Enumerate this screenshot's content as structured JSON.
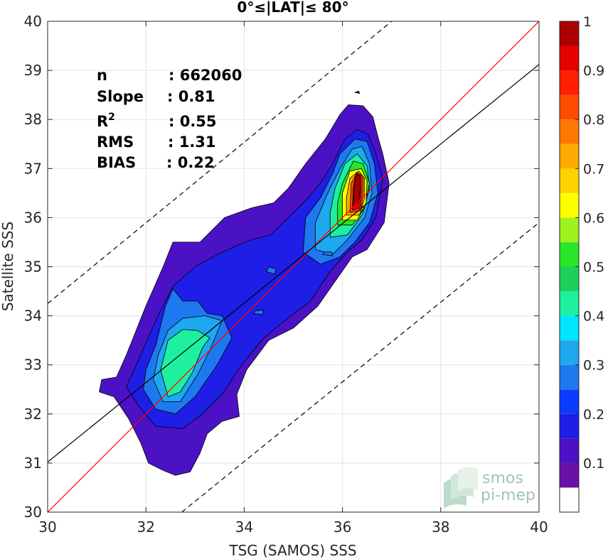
{
  "chart_data": {
    "type": "heatmap",
    "title": "0°≤|LAT|≤ 80°",
    "xlabel": "TSG (SAMOS) SSS",
    "ylabel": "Satellite SSS",
    "xlim": [
      30,
      40
    ],
    "ylim": [
      30,
      40
    ],
    "xticks": [
      "30",
      "32",
      "34",
      "36",
      "38",
      "40"
    ],
    "yticks": [
      "30",
      "31",
      "32",
      "33",
      "34",
      "35",
      "36",
      "37",
      "38",
      "39",
      "40"
    ],
    "grid": true,
    "stats": [
      {
        "label": "n",
        "value": ": 662060"
      },
      {
        "label": "Slope",
        "value": ": 0.81"
      },
      {
        "label": "R",
        "sup": "2",
        "value": ": 0.55"
      },
      {
        "label": "RMS",
        "value": ": 1.31"
      },
      {
        "label": "BIAS",
        "value": ": 0.22"
      }
    ],
    "lines": [
      {
        "name": "identity",
        "color": "#ff0000",
        "style": "solid",
        "points": [
          [
            30,
            30
          ],
          [
            40,
            40
          ]
        ]
      },
      {
        "name": "fit",
        "color": "#000000",
        "style": "solid",
        "points": [
          [
            30,
            31.02
          ],
          [
            40,
            39.12
          ]
        ]
      },
      {
        "name": "upper",
        "color": "#000000",
        "style": "dashed",
        "points": [
          [
            30,
            34.25
          ],
          [
            37.0,
            40
          ]
        ]
      },
      {
        "name": "lower",
        "color": "#000000",
        "style": "dashed",
        "points": [
          [
            32.73,
            30
          ],
          [
            40,
            35.9
          ]
        ]
      }
    ],
    "colorbar": {
      "ticks": [
        "0.1",
        "0.2",
        "0.3",
        "0.4",
        "0.5",
        "0.6",
        "0.7",
        "0.8",
        "0.9",
        "1"
      ],
      "tick_values": [
        0.1,
        0.2,
        0.3,
        0.4,
        0.5,
        0.6,
        0.7,
        0.8,
        0.9,
        1.0
      ],
      "levels": [
        {
          "from": 0.0,
          "to": 0.05,
          "color": "#ffffff"
        },
        {
          "from": 0.05,
          "to": 0.1,
          "color": "#6a0fa8"
        },
        {
          "from": 0.1,
          "to": 0.15,
          "color": "#4a12c4"
        },
        {
          "from": 0.15,
          "to": 0.2,
          "color": "#1e1ee6"
        },
        {
          "from": 0.2,
          "to": 0.25,
          "color": "#0a3cff"
        },
        {
          "from": 0.25,
          "to": 0.3,
          "color": "#1e78f0"
        },
        {
          "from": 0.3,
          "to": 0.35,
          "color": "#1ea8f0"
        },
        {
          "from": 0.35,
          "to": 0.4,
          "color": "#00e6ff"
        },
        {
          "from": 0.4,
          "to": 0.45,
          "color": "#1ef0a0"
        },
        {
          "from": 0.45,
          "to": 0.5,
          "color": "#1ed05a"
        },
        {
          "from": 0.5,
          "to": 0.55,
          "color": "#28e628"
        },
        {
          "from": 0.55,
          "to": 0.6,
          "color": "#a0f01e"
        },
        {
          "from": 0.6,
          "to": 0.65,
          "color": "#ffff00"
        },
        {
          "from": 0.65,
          "to": 0.7,
          "color": "#ffd200"
        },
        {
          "from": 0.7,
          "to": 0.75,
          "color": "#ffaa00"
        },
        {
          "from": 0.75,
          "to": 0.8,
          "color": "#ff7800"
        },
        {
          "from": 0.8,
          "to": 0.85,
          "color": "#ff4b00"
        },
        {
          "from": 0.85,
          "to": 0.9,
          "color": "#ff1e00"
        },
        {
          "from": 0.9,
          "to": 0.95,
          "color": "#e60000"
        },
        {
          "from": 0.95,
          "to": 1.0,
          "color": "#aa0000"
        }
      ]
    },
    "contours": [
      {
        "level": 0.1,
        "color": "#4a12c4",
        "points": [
          [
            31.05,
            32.45
          ],
          [
            31.35,
            32.35
          ],
          [
            31.65,
            31.9
          ],
          [
            31.9,
            31.4
          ],
          [
            32.05,
            31.0
          ],
          [
            32.35,
            30.85
          ],
          [
            32.6,
            30.75
          ],
          [
            32.9,
            30.82
          ],
          [
            33.1,
            31.2
          ],
          [
            33.25,
            31.6
          ],
          [
            33.55,
            31.85
          ],
          [
            33.9,
            31.95
          ],
          [
            33.85,
            32.4
          ],
          [
            34.05,
            32.9
          ],
          [
            34.5,
            33.5
          ],
          [
            35.0,
            33.75
          ],
          [
            35.5,
            34.2
          ],
          [
            35.85,
            34.7
          ],
          [
            36.2,
            35.2
          ],
          [
            36.5,
            35.35
          ],
          [
            36.85,
            35.9
          ],
          [
            36.95,
            36.7
          ],
          [
            36.82,
            37.3
          ],
          [
            36.72,
            37.65
          ],
          [
            36.62,
            38.05
          ],
          [
            36.42,
            38.28
          ],
          [
            36.12,
            38.3
          ],
          [
            35.95,
            38.1
          ],
          [
            35.65,
            37.6
          ],
          [
            35.25,
            37.1
          ],
          [
            34.9,
            36.6
          ],
          [
            34.6,
            36.3
          ],
          [
            34.15,
            36.2
          ],
          [
            33.6,
            36.0
          ],
          [
            33.1,
            35.5
          ],
          [
            32.55,
            35.5
          ],
          [
            32.35,
            35.0
          ],
          [
            32.0,
            34.2
          ],
          [
            31.6,
            33.2
          ],
          [
            31.4,
            32.75
          ],
          [
            31.1,
            32.7
          ],
          [
            31.05,
            32.45
          ]
        ]
      },
      {
        "level": 0.15,
        "color": "#1e1ee6",
        "points": [
          [
            31.6,
            32.55
          ],
          [
            31.9,
            32.1
          ],
          [
            32.2,
            31.75
          ],
          [
            32.75,
            31.7
          ],
          [
            33.15,
            32.0
          ],
          [
            33.55,
            32.4
          ],
          [
            33.95,
            33.0
          ],
          [
            34.4,
            33.55
          ],
          [
            34.95,
            34.0
          ],
          [
            35.35,
            34.3
          ],
          [
            35.75,
            34.9
          ],
          [
            36.1,
            35.3
          ],
          [
            36.4,
            35.55
          ],
          [
            36.68,
            36.0
          ],
          [
            36.82,
            36.8
          ],
          [
            36.68,
            37.3
          ],
          [
            36.52,
            37.7
          ],
          [
            36.3,
            37.8
          ],
          [
            36.05,
            37.6
          ],
          [
            35.8,
            37.1
          ],
          [
            35.55,
            36.7
          ],
          [
            35.25,
            36.35
          ],
          [
            34.9,
            36.0
          ],
          [
            34.55,
            35.65
          ],
          [
            34.15,
            35.55
          ],
          [
            33.55,
            35.3
          ],
          [
            33.0,
            35.0
          ],
          [
            32.55,
            34.6
          ],
          [
            32.2,
            33.9
          ],
          [
            31.85,
            33.1
          ],
          [
            31.6,
            32.55
          ]
        ]
      },
      {
        "level": 0.25,
        "color": "#1e78f0",
        "points": [
          [
            31.95,
            32.5
          ],
          [
            32.2,
            32.1
          ],
          [
            32.6,
            32.0
          ],
          [
            33.0,
            32.35
          ],
          [
            33.45,
            33.0
          ],
          [
            33.75,
            33.55
          ],
          [
            33.55,
            34.0
          ],
          [
            33.25,
            34.05
          ],
          [
            33.05,
            34.3
          ],
          [
            32.75,
            34.3
          ],
          [
            32.55,
            34.55
          ],
          [
            32.4,
            34.2
          ],
          [
            32.2,
            33.4
          ],
          [
            32.0,
            32.9
          ],
          [
            31.95,
            32.5
          ]
        ]
      },
      {
        "level": 0.3,
        "color": "#1ea8f0",
        "points": [
          [
            32.15,
            32.7
          ],
          [
            32.35,
            32.25
          ],
          [
            32.7,
            32.25
          ],
          [
            33.05,
            32.8
          ],
          [
            33.3,
            33.3
          ],
          [
            33.55,
            33.9
          ],
          [
            33.2,
            34.0
          ],
          [
            32.75,
            33.95
          ],
          [
            32.45,
            33.7
          ],
          [
            32.25,
            33.2
          ],
          [
            32.15,
            32.7
          ]
        ]
      },
      {
        "level": 0.4,
        "color": "#1ef0a0",
        "points": [
          [
            32.3,
            32.9
          ],
          [
            32.45,
            32.35
          ],
          [
            32.7,
            32.45
          ],
          [
            32.95,
            32.85
          ],
          [
            33.15,
            33.35
          ],
          [
            33.3,
            33.55
          ],
          [
            33.05,
            33.7
          ],
          [
            32.75,
            33.72
          ],
          [
            32.45,
            33.5
          ],
          [
            32.3,
            32.9
          ]
        ]
      },
      {
        "level": 0.25,
        "color": "#1e78f0",
        "points": [
          [
            35.2,
            35.3
          ],
          [
            35.55,
            35.05
          ],
          [
            35.95,
            35.2
          ],
          [
            36.25,
            35.5
          ],
          [
            36.55,
            35.9
          ],
          [
            36.72,
            36.5
          ],
          [
            36.65,
            37.1
          ],
          [
            36.5,
            37.55
          ],
          [
            36.25,
            37.6
          ],
          [
            35.95,
            37.3
          ],
          [
            35.8,
            36.9
          ],
          [
            35.55,
            36.4
          ],
          [
            35.25,
            36.0
          ],
          [
            35.2,
            35.3
          ]
        ]
      },
      {
        "level": 0.3,
        "color": "#1ea8f0",
        "points": [
          [
            35.45,
            35.35
          ],
          [
            35.8,
            35.25
          ],
          [
            36.1,
            35.55
          ],
          [
            36.45,
            36.0
          ],
          [
            36.6,
            36.5
          ],
          [
            36.55,
            37.1
          ],
          [
            36.4,
            37.45
          ],
          [
            36.2,
            37.4
          ],
          [
            35.95,
            37.0
          ],
          [
            35.7,
            36.5
          ],
          [
            35.45,
            35.9
          ],
          [
            35.45,
            35.35
          ]
        ]
      },
      {
        "level": 0.4,
        "color": "#1ef0a0",
        "points": [
          [
            35.75,
            35.6
          ],
          [
            36.1,
            35.65
          ],
          [
            36.4,
            36.05
          ],
          [
            36.55,
            36.6
          ],
          [
            36.5,
            37.05
          ],
          [
            36.3,
            37.3
          ],
          [
            36.05,
            37.1
          ],
          [
            35.85,
            36.6
          ],
          [
            35.75,
            36.1
          ],
          [
            35.75,
            35.6
          ]
        ]
      },
      {
        "level": 0.5,
        "color": "#28e628",
        "points": [
          [
            35.9,
            35.85
          ],
          [
            36.2,
            35.85
          ],
          [
            36.45,
            36.2
          ],
          [
            36.55,
            36.7
          ],
          [
            36.42,
            37.1
          ],
          [
            36.22,
            37.15
          ],
          [
            36.0,
            36.7
          ],
          [
            35.9,
            36.3
          ],
          [
            35.9,
            35.85
          ]
        ]
      },
      {
        "level": 0.6,
        "color": "#ffff00",
        "points": [
          [
            36.0,
            35.95
          ],
          [
            36.3,
            35.95
          ],
          [
            36.48,
            36.3
          ],
          [
            36.5,
            36.75
          ],
          [
            36.38,
            37.0
          ],
          [
            36.15,
            36.95
          ],
          [
            36.0,
            36.5
          ],
          [
            36.0,
            35.95
          ]
        ]
      },
      {
        "level": 0.7,
        "color": "#ffaa00",
        "points": [
          [
            36.08,
            36.05
          ],
          [
            36.35,
            36.05
          ],
          [
            36.45,
            36.4
          ],
          [
            36.45,
            36.8
          ],
          [
            36.33,
            36.95
          ],
          [
            36.15,
            36.8
          ],
          [
            36.08,
            36.4
          ],
          [
            36.08,
            36.05
          ]
        ]
      },
      {
        "level": 0.8,
        "color": "#ff4b00",
        "points": [
          [
            36.15,
            36.1
          ],
          [
            36.38,
            36.15
          ],
          [
            36.42,
            36.5
          ],
          [
            36.42,
            36.85
          ],
          [
            36.3,
            36.92
          ],
          [
            36.18,
            36.7
          ],
          [
            36.15,
            36.1
          ]
        ]
      },
      {
        "level": 0.9,
        "color": "#e60000",
        "points": [
          [
            36.2,
            36.15
          ],
          [
            36.36,
            36.2
          ],
          [
            36.38,
            36.5
          ],
          [
            36.38,
            36.85
          ],
          [
            36.28,
            36.9
          ],
          [
            36.22,
            36.6
          ],
          [
            36.2,
            36.15
          ]
        ]
      },
      {
        "level": 1.0,
        "color": "#aa0000",
        "points": [
          [
            36.22,
            36.25
          ],
          [
            36.33,
            36.3
          ],
          [
            36.36,
            36.6
          ],
          [
            36.35,
            36.85
          ],
          [
            36.27,
            36.88
          ],
          [
            36.24,
            36.6
          ],
          [
            36.22,
            36.25
          ]
        ]
      },
      {
        "level": 0.25,
        "color": "#1e78f0",
        "points": [
          [
            34.45,
            34.9
          ],
          [
            34.62,
            34.85
          ],
          [
            34.65,
            34.95
          ],
          [
            34.5,
            35.0
          ],
          [
            34.45,
            34.9
          ]
        ]
      },
      {
        "level": 0.25,
        "color": "#1e78f0",
        "points": [
          [
            34.2,
            34.05
          ],
          [
            34.38,
            34.02
          ],
          [
            34.38,
            34.12
          ],
          [
            34.22,
            34.1
          ],
          [
            34.2,
            34.05
          ]
        ]
      },
      {
        "level": 0.25,
        "color": "#1e78f0",
        "points": [
          [
            35.6,
            35.25
          ],
          [
            35.8,
            35.22
          ],
          [
            35.78,
            35.3
          ],
          [
            35.62,
            35.3
          ],
          [
            35.6,
            35.25
          ]
        ]
      },
      {
        "level": 0.1,
        "color": "#4a12c4",
        "points": [
          [
            36.25,
            38.55
          ],
          [
            36.35,
            38.53
          ],
          [
            36.33,
            38.58
          ],
          [
            36.25,
            38.55
          ]
        ]
      }
    ],
    "watermark": [
      "smos",
      "pi-mep"
    ]
  }
}
